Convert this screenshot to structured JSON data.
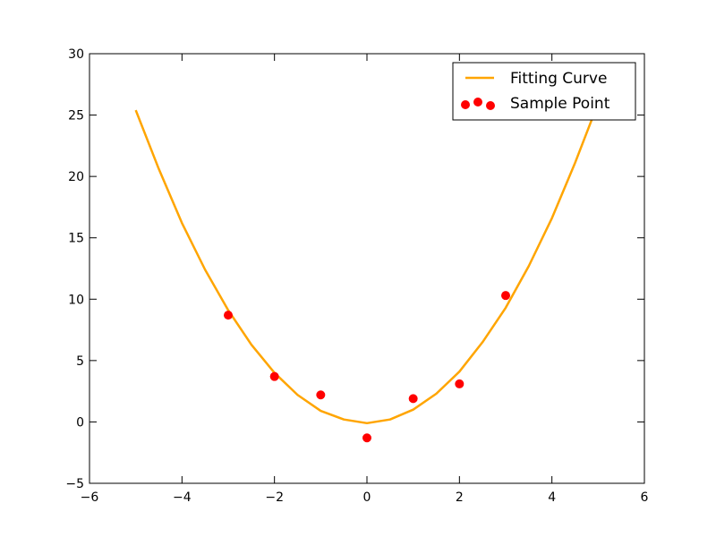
{
  "chart_data": {
    "type": "line",
    "title": "",
    "xlabel": "",
    "ylabel": "",
    "xlim": [
      -6,
      6
    ],
    "ylim": [
      -5,
      30
    ],
    "xticks": [
      -6,
      -4,
      -2,
      0,
      2,
      4,
      6
    ],
    "yticks": [
      -5,
      0,
      5,
      10,
      15,
      20,
      25,
      30
    ],
    "xtick_labels": [
      "−6",
      "−4",
      "−2",
      "0",
      "2",
      "4",
      "6"
    ],
    "ytick_labels": [
      "−5",
      "0",
      "5",
      "10",
      "15",
      "20",
      "25",
      "30"
    ],
    "grid": false,
    "legend_position": "top-right",
    "series": [
      {
        "name": "Fitting Curve",
        "kind": "line",
        "color": "#FFA500",
        "x": [
          -5,
          -4.5,
          -4,
          -3.5,
          -3,
          -2.5,
          -2,
          -1.5,
          -1,
          -0.5,
          0,
          0.5,
          1,
          1.5,
          2,
          2.5,
          3,
          3.5,
          4,
          4.5,
          4.9
        ],
        "y": [
          25.4,
          20.6,
          16.2,
          12.4,
          9.1,
          6.3,
          4.0,
          2.2,
          0.9,
          0.2,
          -0.1,
          0.2,
          1.0,
          2.3,
          4.1,
          6.5,
          9.3,
          12.7,
          16.6,
          21.1,
          25.0
        ]
      },
      {
        "name": "Sample Point",
        "kind": "scatter",
        "color": "#FF0000",
        "x": [
          -3,
          -2,
          -1,
          0,
          1,
          2,
          3
        ],
        "y": [
          8.7,
          3.7,
          2.2,
          -1.3,
          1.9,
          3.1,
          10.3
        ]
      }
    ]
  }
}
